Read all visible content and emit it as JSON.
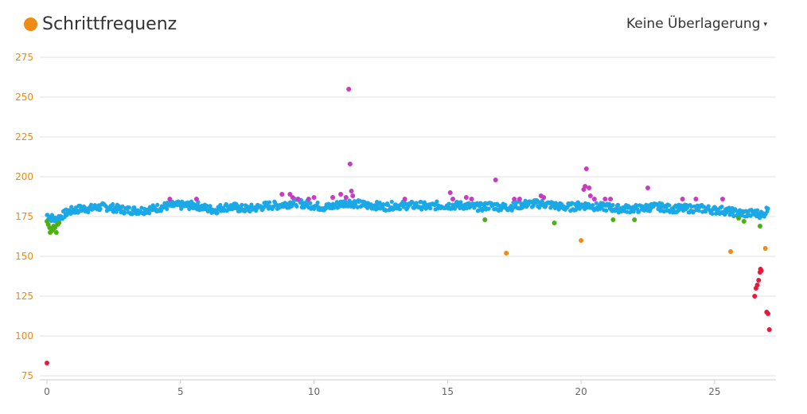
{
  "header": {
    "title": "Schrittfrequenz",
    "overlay_label": "Keine Überlagerung",
    "caret": "▾"
  },
  "colors": {
    "title_dot": "#ef8a14",
    "ytick": "#e88a17",
    "grid": "#e0e0e0",
    "axis": "#cccccc",
    "blue": "#1aa9e6",
    "green": "#4caf15",
    "magenta": "#c83cc1",
    "orange": "#ef8a14",
    "red": "#e8193c"
  },
  "chart_data": {
    "type": "scatter",
    "title": "Schrittfrequenz",
    "xlim": [
      0,
      27
    ],
    "ylim": [
      75,
      275
    ],
    "x_ticks": [
      0,
      5,
      10,
      15,
      20,
      25
    ],
    "y_ticks": [
      75,
      100,
      125,
      150,
      175,
      200,
      225,
      250,
      275
    ],
    "grid": true,
    "baseline": {
      "color": "blue",
      "points": [
        [
          0.0,
          176
        ],
        [
          0.3,
          173
        ],
        [
          0.5,
          175
        ],
        [
          0.8,
          178
        ],
        [
          1.0,
          179
        ],
        [
          1.3,
          180
        ],
        [
          1.6,
          180
        ],
        [
          2.0,
          181
        ],
        [
          2.3,
          181
        ],
        [
          2.6,
          180
        ],
        [
          3.0,
          179
        ],
        [
          3.3,
          179
        ],
        [
          3.6,
          179
        ],
        [
          4.0,
          180
        ],
        [
          4.3,
          181
        ],
        [
          4.6,
          182
        ],
        [
          5.0,
          182
        ],
        [
          5.3,
          182
        ],
        [
          5.6,
          182
        ],
        [
          6.0,
          180
        ],
        [
          6.3,
          179
        ],
        [
          6.6,
          181
        ],
        [
          7.0,
          181
        ],
        [
          7.3,
          180
        ],
        [
          7.6,
          180
        ],
        [
          8.0,
          181
        ],
        [
          8.3,
          182
        ],
        [
          8.6,
          182
        ],
        [
          9.0,
          183
        ],
        [
          9.3,
          184
        ],
        [
          9.6,
          183
        ],
        [
          10.0,
          182
        ],
        [
          10.3,
          181
        ],
        [
          10.6,
          181
        ],
        [
          11.0,
          183
        ],
        [
          11.3,
          184
        ],
        [
          11.6,
          183
        ],
        [
          12.0,
          182
        ],
        [
          12.3,
          182
        ],
        [
          12.6,
          181
        ],
        [
          13.0,
          182
        ],
        [
          13.3,
          182
        ],
        [
          13.6,
          182
        ],
        [
          14.0,
          182
        ],
        [
          14.3,
          181
        ],
        [
          14.6,
          182
        ],
        [
          15.0,
          182
        ],
        [
          15.3,
          182
        ],
        [
          15.6,
          182
        ],
        [
          16.0,
          181
        ],
        [
          16.3,
          181
        ],
        [
          16.6,
          182
        ],
        [
          17.0,
          181
        ],
        [
          17.3,
          181
        ],
        [
          17.6,
          182
        ],
        [
          18.0,
          183
        ],
        [
          18.3,
          183
        ],
        [
          18.6,
          183
        ],
        [
          19.0,
          182
        ],
        [
          19.3,
          181
        ],
        [
          19.6,
          181
        ],
        [
          20.0,
          182
        ],
        [
          20.3,
          182
        ],
        [
          20.6,
          181
        ],
        [
          21.0,
          181
        ],
        [
          21.3,
          180
        ],
        [
          21.6,
          180
        ],
        [
          22.0,
          180
        ],
        [
          22.3,
          180
        ],
        [
          22.6,
          181
        ],
        [
          23.0,
          181
        ],
        [
          23.3,
          180
        ],
        [
          23.6,
          180
        ],
        [
          24.0,
          180
        ],
        [
          24.3,
          180
        ],
        [
          24.6,
          180
        ],
        [
          25.0,
          179
        ],
        [
          25.3,
          179
        ],
        [
          25.6,
          178
        ],
        [
          26.0,
          177
        ],
        [
          26.3,
          177
        ],
        [
          26.6,
          177
        ],
        [
          26.8,
          176
        ],
        [
          27.0,
          180
        ]
      ]
    },
    "scatter": [
      {
        "color": "green",
        "points": [
          [
            0.0,
            172
          ],
          [
            0.05,
            170
          ],
          [
            0.1,
            168
          ],
          [
            0.12,
            165
          ],
          [
            0.18,
            166
          ],
          [
            0.22,
            167
          ],
          [
            0.25,
            169
          ],
          [
            0.3,
            168
          ],
          [
            0.35,
            165
          ],
          [
            0.4,
            170
          ],
          [
            0.45,
            171
          ],
          [
            16.4,
            173
          ],
          [
            19.0,
            171
          ],
          [
            21.2,
            173
          ],
          [
            22.0,
            173
          ],
          [
            25.9,
            174
          ],
          [
            26.1,
            172
          ],
          [
            26.7,
            169
          ]
        ]
      },
      {
        "color": "magenta",
        "points": [
          [
            4.6,
            186
          ],
          [
            5.6,
            186
          ],
          [
            8.8,
            189
          ],
          [
            9.1,
            189
          ],
          [
            9.2,
            187
          ],
          [
            9.4,
            186
          ],
          [
            9.8,
            186
          ],
          [
            10.0,
            187
          ],
          [
            10.7,
            187
          ],
          [
            11.0,
            189
          ],
          [
            11.2,
            187
          ],
          [
            11.3,
            255
          ],
          [
            11.35,
            208
          ],
          [
            11.4,
            191
          ],
          [
            11.45,
            188
          ],
          [
            13.4,
            186
          ],
          [
            15.1,
            190
          ],
          [
            15.2,
            186
          ],
          [
            15.7,
            187
          ],
          [
            15.9,
            186
          ],
          [
            16.8,
            198
          ],
          [
            17.5,
            186
          ],
          [
            17.7,
            186
          ],
          [
            18.5,
            188
          ],
          [
            18.6,
            187
          ],
          [
            20.1,
            192
          ],
          [
            20.15,
            194
          ],
          [
            20.2,
            205
          ],
          [
            20.3,
            193
          ],
          [
            20.35,
            188
          ],
          [
            20.5,
            186
          ],
          [
            20.9,
            186
          ],
          [
            21.1,
            186
          ],
          [
            22.5,
            193
          ],
          [
            23.8,
            186
          ],
          [
            24.3,
            186
          ],
          [
            25.3,
            186
          ]
        ]
      },
      {
        "color": "orange",
        "points": [
          [
            17.2,
            152
          ],
          [
            20.0,
            160
          ],
          [
            25.6,
            153
          ],
          [
            26.9,
            155
          ]
        ]
      },
      {
        "color": "red",
        "points": [
          [
            0.0,
            83
          ],
          [
            26.5,
            125
          ],
          [
            26.55,
            130
          ],
          [
            26.6,
            132
          ],
          [
            26.65,
            135
          ],
          [
            26.7,
            140
          ],
          [
            26.72,
            142
          ],
          [
            26.75,
            141
          ],
          [
            26.95,
            115
          ],
          [
            27.0,
            114
          ],
          [
            27.05,
            104
          ]
        ]
      }
    ]
  }
}
